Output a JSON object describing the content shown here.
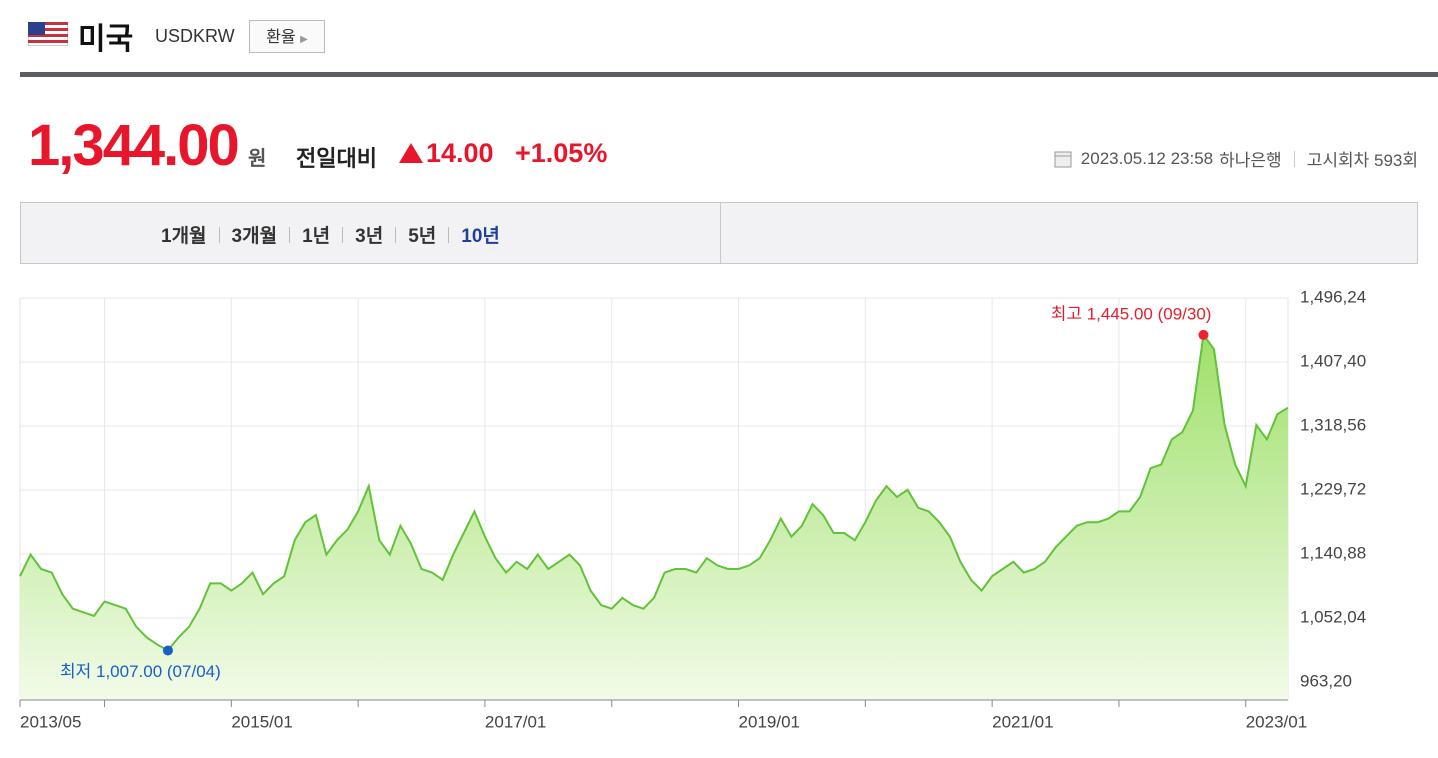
{
  "header": {
    "country": "미국",
    "code": "USDKRW",
    "button": "환율"
  },
  "quote": {
    "price": "1,344.00",
    "unit": "원",
    "change_label": "전일대비",
    "change": "14.00",
    "change_pct": "+1.05%",
    "datetime": "2023.05.12 23:58",
    "bank": "하나은행",
    "notice": "고시회차 593회"
  },
  "tabs": [
    {
      "label": "1개월"
    },
    {
      "label": "3개월"
    },
    {
      "label": "1년"
    },
    {
      "label": "3년"
    },
    {
      "label": "5년"
    },
    {
      "label": "10년",
      "active": true
    }
  ],
  "chart_data": {
    "type": "area",
    "color": "#62c23a",
    "annotations": {
      "high": "최고 1,445.00 (09/30)",
      "low": "최저 1,007.00 (07/04)"
    },
    "x": [
      "2013/05",
      "2013/06",
      "2013/07",
      "2013/08",
      "2013/09",
      "2013/10",
      "2013/11",
      "2013/12",
      "2014/01",
      "2014/02",
      "2014/03",
      "2014/04",
      "2014/05",
      "2014/06",
      "2014/07",
      "2014/08",
      "2014/09",
      "2014/10",
      "2014/11",
      "2014/12",
      "2015/01",
      "2015/02",
      "2015/03",
      "2015/04",
      "2015/05",
      "2015/06",
      "2015/07",
      "2015/08",
      "2015/09",
      "2015/10",
      "2015/11",
      "2015/12",
      "2016/01",
      "2016/02",
      "2016/03",
      "2016/04",
      "2016/05",
      "2016/06",
      "2016/07",
      "2016/08",
      "2016/09",
      "2016/10",
      "2016/11",
      "2016/12",
      "2017/01",
      "2017/02",
      "2017/03",
      "2017/04",
      "2017/05",
      "2017/06",
      "2017/07",
      "2017/08",
      "2017/09",
      "2017/10",
      "2017/11",
      "2017/12",
      "2018/01",
      "2018/02",
      "2018/03",
      "2018/04",
      "2018/05",
      "2018/06",
      "2018/07",
      "2018/08",
      "2018/09",
      "2018/10",
      "2018/11",
      "2018/12",
      "2019/01",
      "2019/02",
      "2019/03",
      "2019/04",
      "2019/05",
      "2019/06",
      "2019/07",
      "2019/08",
      "2019/09",
      "2019/10",
      "2019/11",
      "2019/12",
      "2020/01",
      "2020/02",
      "2020/03",
      "2020/04",
      "2020/05",
      "2020/06",
      "2020/07",
      "2020/08",
      "2020/09",
      "2020/10",
      "2020/11",
      "2020/12",
      "2021/01",
      "2021/02",
      "2021/03",
      "2021/04",
      "2021/05",
      "2021/06",
      "2021/07",
      "2021/08",
      "2021/09",
      "2021/10",
      "2021/11",
      "2021/12",
      "2022/01",
      "2022/02",
      "2022/03",
      "2022/04",
      "2022/05",
      "2022/06",
      "2022/07",
      "2022/08",
      "2022/09",
      "2022/10",
      "2022/11",
      "2022/12",
      "2023/01",
      "2023/02",
      "2023/03",
      "2023/04",
      "2023/05"
    ],
    "values": [
      1110,
      1140,
      1120,
      1115,
      1085,
      1065,
      1060,
      1055,
      1075,
      1070,
      1065,
      1040,
      1025,
      1015,
      1007,
      1025,
      1040,
      1065,
      1100,
      1100,
      1090,
      1100,
      1115,
      1085,
      1100,
      1110,
      1160,
      1185,
      1195,
      1140,
      1160,
      1175,
      1200,
      1235,
      1160,
      1140,
      1180,
      1155,
      1120,
      1115,
      1105,
      1140,
      1170,
      1200,
      1165,
      1135,
      1115,
      1130,
      1120,
      1140,
      1120,
      1130,
      1140,
      1125,
      1090,
      1070,
      1065,
      1080,
      1070,
      1065,
      1080,
      1115,
      1120,
      1120,
      1115,
      1135,
      1125,
      1120,
      1120,
      1125,
      1135,
      1160,
      1190,
      1165,
      1180,
      1210,
      1195,
      1170,
      1170,
      1160,
      1185,
      1215,
      1235,
      1220,
      1230,
      1205,
      1200,
      1185,
      1165,
      1130,
      1105,
      1090,
      1110,
      1120,
      1130,
      1115,
      1120,
      1130,
      1150,
      1165,
      1180,
      1185,
      1185,
      1190,
      1200,
      1200,
      1220,
      1260,
      1265,
      1300,
      1310,
      1340,
      1445,
      1425,
      1320,
      1265,
      1235,
      1320,
      1300,
      1335,
      1344
    ],
    "ylim": [
      938.2,
      1496.24
    ],
    "yticks": [
      {
        "value": 1496.24,
        "label": "1,496,24"
      },
      {
        "value": 1407.4,
        "label": "1,407,40"
      },
      {
        "value": 1318.56,
        "label": "1,318,56"
      },
      {
        "value": 1229.72,
        "label": "1,229,72"
      },
      {
        "value": 1140.88,
        "label": "1,140,88"
      },
      {
        "value": 1052.04,
        "label": "1,052,04"
      },
      {
        "value": 963.2,
        "label": "963,20"
      }
    ],
    "xticks": [
      "2013/05",
      "2015/01",
      "2017/01",
      "2019/01",
      "2021/01",
      "2023/01"
    ],
    "grid": true
  }
}
